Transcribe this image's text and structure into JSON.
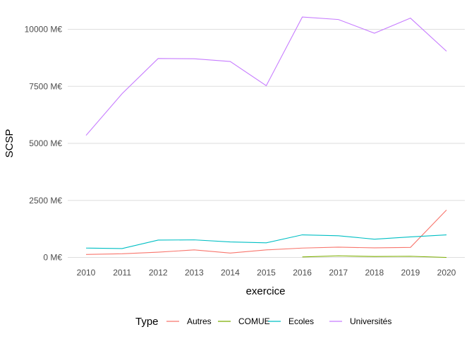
{
  "chart_data": {
    "type": "line",
    "xlabel": "exercice",
    "ylabel": "SCSP",
    "x": [
      2010,
      2011,
      2012,
      2013,
      2014,
      2015,
      2016,
      2017,
      2018,
      2019,
      2020
    ],
    "xlim": [
      2010,
      2020
    ],
    "ylim": [
      0,
      10000
    ],
    "yticks": [
      {
        "value": 0,
        "label": "0 M€"
      },
      {
        "value": 2500,
        "label": "2500 M€"
      },
      {
        "value": 5000,
        "label": "5000 M€"
      },
      {
        "value": 7500,
        "label": "7500 M€"
      },
      {
        "value": 10000,
        "label": "10000 M€"
      }
    ],
    "grid": true,
    "legend": {
      "title": "Type",
      "placement": "bottom"
    },
    "series": [
      {
        "name": "Autres",
        "color": "#F8766D",
        "points": [
          [
            2010,
            130
          ],
          [
            2011,
            160
          ],
          [
            2012,
            230
          ],
          [
            2013,
            330
          ],
          [
            2014,
            190
          ],
          [
            2015,
            330
          ],
          [
            2016,
            410
          ],
          [
            2017,
            450
          ],
          [
            2018,
            420
          ],
          [
            2019,
            440
          ],
          [
            2020,
            2080
          ]
        ]
      },
      {
        "name": "COMUE",
        "color": "#7CAE00",
        "points": [
          [
            2016,
            20
          ],
          [
            2017,
            70
          ],
          [
            2018,
            40
          ],
          [
            2019,
            50
          ],
          [
            2020,
            0
          ]
        ]
      },
      {
        "name": "Ecoles",
        "color": "#00BFC4",
        "points": [
          [
            2010,
            410
          ],
          [
            2011,
            390
          ],
          [
            2012,
            760
          ],
          [
            2013,
            770
          ],
          [
            2014,
            680
          ],
          [
            2015,
            640
          ],
          [
            2016,
            990
          ],
          [
            2017,
            950
          ],
          [
            2018,
            800
          ],
          [
            2019,
            900
          ],
          [
            2020,
            990
          ]
        ]
      },
      {
        "name": "Universités",
        "color": "#C77CFF",
        "points": [
          [
            2010,
            5350
          ],
          [
            2011,
            7180
          ],
          [
            2012,
            8720
          ],
          [
            2013,
            8710
          ],
          [
            2014,
            8590
          ],
          [
            2015,
            7530
          ],
          [
            2016,
            10540
          ],
          [
            2017,
            10430
          ],
          [
            2018,
            9830
          ],
          [
            2019,
            10490
          ],
          [
            2020,
            9040
          ]
        ]
      }
    ]
  }
}
